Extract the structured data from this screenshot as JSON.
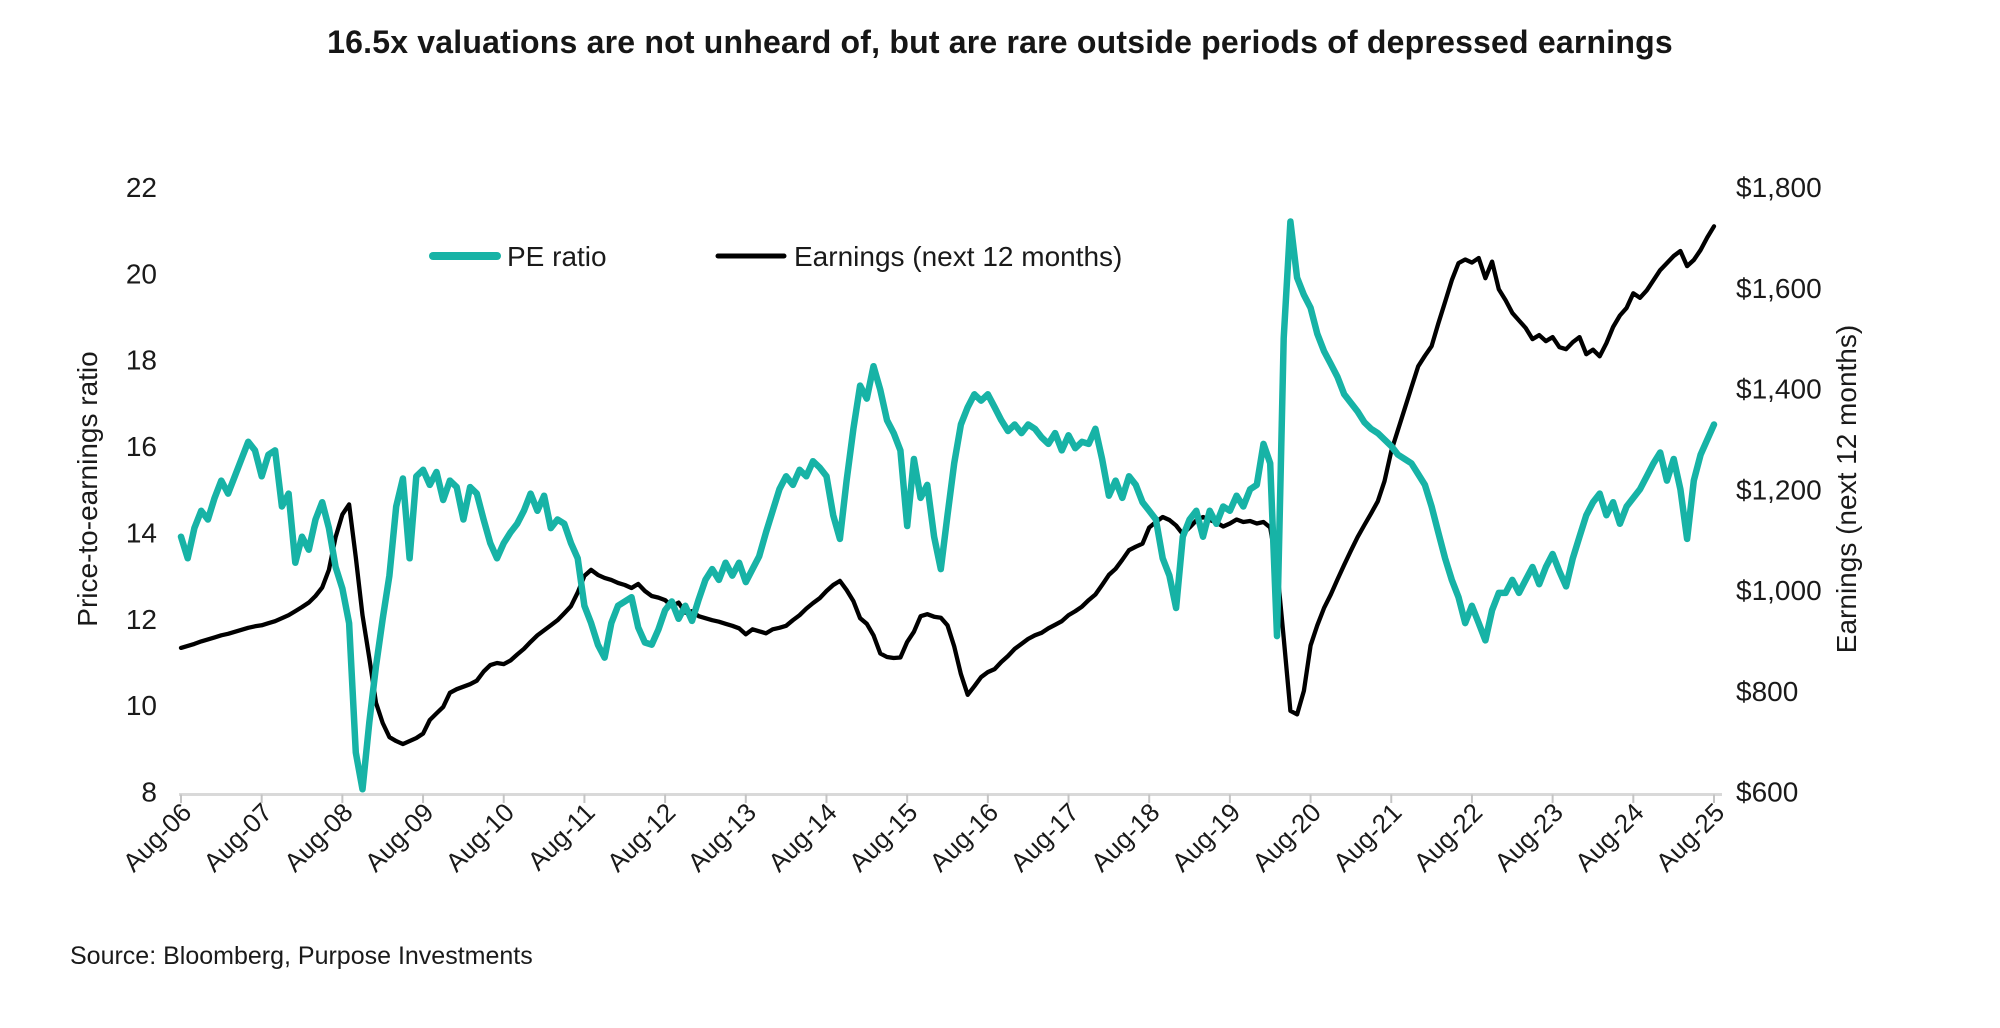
{
  "title": "16.5x valuations are not unheard of, but are rare outside periods of depressed earnings",
  "source": "Source: Bloomberg, Purpose Investments",
  "legend": {
    "pe_label": "PE ratio",
    "earnings_label": "Earnings (next 12 months)"
  },
  "colors": {
    "pe": "#17B3A6",
    "earnings": "#000000",
    "axis": "#D9D9D9",
    "tick": "#C4C4C4",
    "text": "#1A1A1A"
  },
  "chart_data": {
    "type": "line",
    "title": "16.5x valuations are not unheard of, but are rare outside periods of depressed earnings",
    "x_unit": "monthly",
    "x_start": "Aug-06",
    "x_end": "Aug-25",
    "x_tick_labels": [
      "Aug-06",
      "Aug-07",
      "Aug-08",
      "Aug-09",
      "Aug-10",
      "Aug-11",
      "Aug-12",
      "Aug-13",
      "Aug-14",
      "Aug-15",
      "Aug-16",
      "Aug-17",
      "Aug-18",
      "Aug-19",
      "Aug-20",
      "Aug-21",
      "Aug-22",
      "Aug-23",
      "Aug-24",
      "Aug-25"
    ],
    "grid": false,
    "legend_position": "top-center-inside",
    "left_axis": {
      "label": "Price-to-earnings ratio",
      "min": 8,
      "max": 22,
      "ticks": [
        8,
        10,
        12,
        14,
        16,
        18,
        20,
        22
      ]
    },
    "right_axis": {
      "label": "Earnings (next 12 months)",
      "min": 600,
      "max": 1800,
      "tick_step": 200,
      "tick_labels": [
        "$600",
        "$800",
        "$1,000",
        "$1,200",
        "$1,400",
        "$1,600",
        "$1,800"
      ]
    },
    "series": [
      {
        "name": "PE ratio",
        "axis": "left",
        "color": "#17B3A6",
        "values": [
          13.9,
          13.4,
          14.1,
          14.5,
          14.3,
          14.8,
          15.2,
          14.9,
          15.3,
          15.7,
          16.1,
          15.9,
          15.3,
          15.8,
          15.9,
          14.6,
          14.9,
          13.3,
          13.9,
          13.6,
          14.3,
          14.7,
          14.1,
          13.2,
          12.7,
          11.9,
          8.9,
          8.05,
          9.6,
          10.9,
          12.0,
          13.0,
          14.6,
          15.25,
          13.4,
          15.3,
          15.45,
          15.1,
          15.4,
          14.75,
          15.2,
          15.05,
          14.3,
          15.05,
          14.9,
          14.3,
          13.75,
          13.4,
          13.75,
          14.0,
          14.2,
          14.5,
          14.9,
          14.5,
          14.85,
          14.1,
          14.3,
          14.2,
          13.75,
          13.4,
          12.3,
          11.9,
          11.4,
          11.1,
          11.9,
          12.3,
          12.4,
          12.5,
          11.8,
          11.45,
          11.4,
          11.75,
          12.2,
          12.4,
          12.0,
          12.3,
          11.95,
          12.45,
          12.9,
          13.15,
          12.9,
          13.3,
          13.0,
          13.3,
          12.85,
          13.15,
          13.45,
          14.0,
          14.5,
          15.0,
          15.3,
          15.1,
          15.45,
          15.3,
          15.65,
          15.5,
          15.3,
          14.4,
          13.85,
          15.2,
          16.4,
          17.4,
          17.1,
          17.85,
          17.3,
          16.6,
          16.3,
          15.9,
          14.15,
          15.7,
          14.8,
          15.1,
          13.9,
          13.15,
          14.4,
          15.6,
          16.5,
          16.9,
          17.2,
          17.05,
          17.2,
          16.9,
          16.6,
          16.35,
          16.5,
          16.3,
          16.5,
          16.4,
          16.2,
          16.05,
          16.3,
          15.9,
          16.25,
          15.95,
          16.1,
          16.05,
          16.4,
          15.7,
          14.85,
          15.2,
          14.8,
          15.3,
          15.1,
          14.7,
          14.5,
          14.3,
          13.4,
          13.0,
          12.25,
          13.9,
          14.3,
          14.5,
          13.9,
          14.5,
          14.2,
          14.6,
          14.5,
          14.85,
          14.6,
          15.0,
          15.1,
          16.05,
          15.6,
          11.6,
          18.5,
          21.2,
          19.9,
          19.5,
          19.2,
          18.6,
          18.2,
          17.9,
          17.6,
          17.2,
          17.0,
          16.8,
          16.55,
          16.4,
          16.3,
          16.15,
          16.0,
          15.8,
          15.7,
          15.6,
          15.35,
          15.1,
          14.6,
          14.0,
          13.4,
          12.9,
          12.5,
          11.9,
          12.3,
          11.9,
          11.5,
          12.2,
          12.6,
          12.6,
          12.9,
          12.6,
          12.9,
          13.2,
          12.8,
          13.2,
          13.5,
          13.1,
          12.75,
          13.4,
          13.9,
          14.4,
          14.7,
          14.9,
          14.4,
          14.7,
          14.2,
          14.6,
          14.8,
          15.0,
          15.3,
          15.6,
          15.85,
          15.2,
          15.7,
          15.0,
          13.85,
          15.2,
          15.8,
          16.15,
          16.5
        ]
      },
      {
        "name": "Earnings (next 12 months)",
        "axis": "right",
        "color": "#000000",
        "values": [
          885,
          889,
          893,
          898,
          902,
          906,
          910,
          913,
          917,
          921,
          925,
          928,
          930,
          934,
          938,
          944,
          950,
          958,
          966,
          975,
          988,
          1005,
          1040,
          1105,
          1150,
          1170,
          1065,
          950,
          865,
          776,
          736,
          708,
          700,
          694,
          700,
          706,
          715,
          742,
          755,
          768,
          796,
          803,
          808,
          813,
          820,
          838,
          851,
          855,
          853,
          860,
          872,
          883,
          897,
          910,
          920,
          930,
          940,
          954,
          968,
          995,
          1028,
          1040,
          1030,
          1024,
          1020,
          1014,
          1010,
          1004,
          1012,
          998,
          988,
          985,
          980,
          968,
          975,
          955,
          958,
          948,
          944,
          940,
          937,
          933,
          929,
          924,
          912,
          922,
          918,
          914,
          922,
          925,
          929,
          940,
          950,
          963,
          974,
          984,
          998,
          1010,
          1018,
          1000,
          978,
          944,
          933,
          910,
          874,
          867,
          865,
          866,
          897,
          917,
          948,
          952,
          947,
          945,
          930,
          888,
          833,
          792,
          809,
          827,
          837,
          843,
          857,
          869,
          883,
          893,
          903,
          910,
          915,
          924,
          931,
          938,
          950,
          958,
          967,
          980,
          991,
          1010,
          1030,
          1042,
          1060,
          1079,
          1086,
          1092,
          1124,
          1135,
          1145,
          1139,
          1128,
          1111,
          1124,
          1138,
          1145,
          1139,
          1134,
          1126,
          1132,
          1140,
          1135,
          1137,
          1132,
          1135,
          1124,
          1045,
          905,
          760,
          753,
          800,
          890,
          930,
          964,
          991,
          1021,
          1050,
          1078,
          1105,
          1129,
          1152,
          1176,
          1216,
          1276,
          1318,
          1360,
          1402,
          1444,
          1465,
          1484,
          1529,
          1572,
          1615,
          1649,
          1656,
          1650,
          1659,
          1619,
          1652,
          1597,
          1575,
          1550,
          1535,
          1520,
          1498,
          1506,
          1494,
          1502,
          1482,
          1478,
          1492,
          1502,
          1468,
          1477,
          1464,
          1490,
          1522,
          1545,
          1560,
          1589,
          1580,
          1595,
          1615,
          1635,
          1649,
          1663,
          1673,
          1643,
          1655,
          1675,
          1700,
          1722
        ]
      }
    ]
  }
}
